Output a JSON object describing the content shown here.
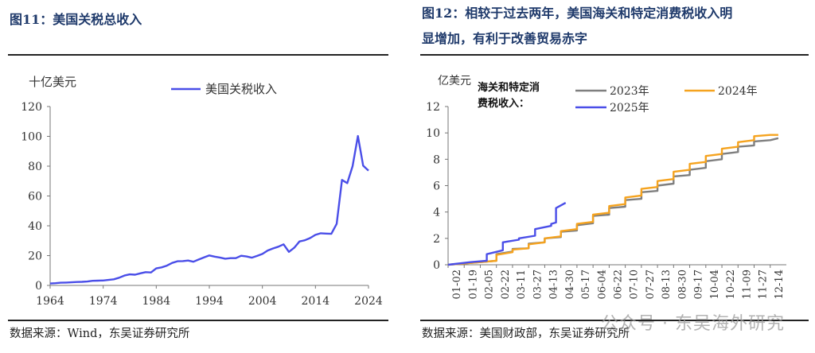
{
  "left": {
    "figure_title": "图11：美国关税总收入",
    "source": "数据来源：Wind，东吴证券研究所",
    "chart_data": {
      "type": "line",
      "unit_label": "十亿美元",
      "series": [
        {
          "name": "美国关税收入",
          "color": "#4a4ee8",
          "x": [
            1964,
            1965,
            1966,
            1967,
            1968,
            1969,
            1970,
            1971,
            1972,
            1973,
            1974,
            1975,
            1976,
            1977,
            1978,
            1979,
            1980,
            1981,
            1982,
            1983,
            1984,
            1985,
            1986,
            1987,
            1988,
            1989,
            1990,
            1991,
            1992,
            1993,
            1994,
            1995,
            1996,
            1997,
            1998,
            1999,
            2000,
            2001,
            2002,
            2003,
            2004,
            2005,
            2006,
            2007,
            2008,
            2009,
            2010,
            2011,
            2012,
            2013,
            2014,
            2015,
            2016,
            2017,
            2018,
            2019,
            2020,
            2021,
            2022,
            2023,
            2024
          ],
          "values": [
            1.3,
            1.5,
            1.8,
            1.9,
            2.1,
            2.3,
            2.4,
            2.6,
            3.1,
            3.2,
            3.3,
            3.7,
            4.1,
            5.2,
            6.6,
            7.4,
            7.2,
            8.1,
            8.9,
            8.7,
            11.4,
            12.1,
            13.3,
            15.1,
            16.2,
            16.3,
            16.7,
            15.9,
            17.4,
            18.8,
            20.1,
            19.3,
            18.7,
            17.9,
            18.3,
            18.3,
            19.9,
            19.4,
            18.6,
            19.8,
            21.1,
            23.4,
            24.8,
            26.0,
            27.6,
            22.5,
            25.3,
            29.5,
            30.3,
            31.8,
            33.9,
            35.0,
            34.8,
            34.6,
            41.3,
            70.8,
            68.6,
            80.0,
            100.2,
            80.3,
            77.0
          ]
        }
      ],
      "xlim": [
        1964,
        2024
      ],
      "ylim": [
        0,
        120
      ],
      "x_ticks": [
        "1964",
        "1974",
        "1984",
        "1994",
        "2004",
        "2014",
        "2024"
      ],
      "y_ticks": [
        "0",
        "20",
        "40",
        "60",
        "80",
        "100",
        "120"
      ],
      "legend": "top-center",
      "grid": false
    }
  },
  "right": {
    "figure_title_line1": "图12：相较于过去两年，美国海关和特定消费税收入明",
    "figure_title_line2": "显增加，有利于改善贸易赤字",
    "source": "数据来源：美国财政部，东吴证券研究所",
    "watermark": "公众号 · 东吴海外研究",
    "chart_data": {
      "type": "line",
      "unit_label": "亿美元",
      "legend_title_line1": "海关和特定消",
      "legend_title_line2": "费税收入：",
      "legend": "top",
      "grid": false,
      "ylim": [
        0,
        12
      ],
      "y_ticks": [
        "0",
        "2",
        "4",
        "6",
        "8",
        "10",
        "12"
      ],
      "x_ticks": [
        "01-02",
        "01-19",
        "02-05",
        "02-22",
        "03-11",
        "03-27",
        "04-13",
        "04-30",
        "05-17",
        "06-04",
        "06-22",
        "07-10",
        "07-27",
        "08-13",
        "08-30",
        "09-17",
        "10-04",
        "10-22",
        "11-09",
        "11-27",
        "12-14"
      ],
      "series": [
        {
          "name": "2023年",
          "color": "#7f7f7f",
          "x": [
            0,
            2,
            3,
            3,
            4,
            4,
            5,
            5,
            6,
            6,
            7,
            7,
            8,
            8,
            9,
            9,
            10,
            10,
            11,
            11,
            12,
            12,
            13,
            13,
            14,
            14,
            15,
            15,
            16,
            16,
            17,
            17,
            18,
            18,
            19,
            19,
            20,
            20.5
          ],
          "values": [
            0.0,
            0.2,
            0.3,
            0.8,
            1.0,
            1.2,
            1.25,
            1.6,
            1.7,
            2.0,
            2.1,
            2.5,
            2.6,
            3.0,
            3.15,
            3.7,
            3.8,
            4.3,
            4.4,
            4.9,
            5.0,
            5.5,
            5.6,
            6.0,
            6.15,
            6.7,
            6.8,
            7.2,
            7.35,
            7.85,
            8.0,
            8.4,
            8.55,
            8.95,
            9.05,
            9.35,
            9.45,
            9.6
          ]
        },
        {
          "name": "2024年",
          "color": "#f5a31f",
          "x": [
            0,
            2,
            3,
            3,
            4,
            4,
            5,
            5,
            6,
            6,
            7,
            7,
            8,
            8,
            9,
            9,
            10,
            10,
            11,
            11,
            12,
            12,
            13,
            13,
            14,
            14,
            15,
            15,
            16,
            16,
            17,
            17,
            18,
            18,
            19,
            19,
            20,
            20.5
          ],
          "values": [
            0.0,
            0.2,
            0.3,
            0.75,
            0.95,
            1.15,
            1.25,
            1.55,
            1.7,
            2.0,
            2.15,
            2.55,
            2.7,
            3.1,
            3.25,
            3.8,
            3.95,
            4.45,
            4.6,
            5.1,
            5.25,
            5.75,
            5.9,
            6.35,
            6.5,
            7.05,
            7.2,
            7.65,
            7.8,
            8.25,
            8.4,
            8.8,
            8.95,
            9.3,
            9.45,
            9.75,
            9.85,
            9.85
          ]
        },
        {
          "name": "2025年",
          "color": "#4a4ee8",
          "x": [
            0,
            1.4,
            2.4,
            2.4,
            3.4,
            3.4,
            4.4,
            4.4,
            5.4,
            5.4,
            6.4,
            6.4,
            6.7,
            6.7,
            7.3
          ],
          "values": [
            0.0,
            0.2,
            0.3,
            0.8,
            1.1,
            1.7,
            1.9,
            2.0,
            2.2,
            2.7,
            2.95,
            3.1,
            3.2,
            4.3,
            4.7
          ]
        }
      ]
    }
  }
}
